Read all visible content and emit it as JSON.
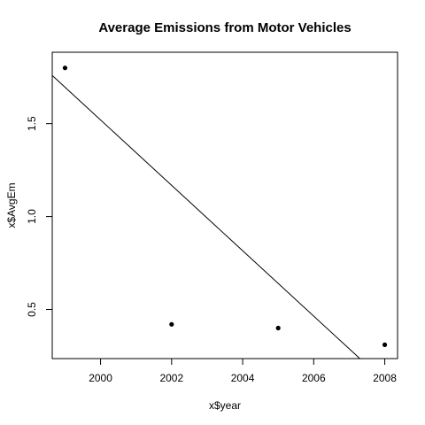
{
  "chart_data": {
    "type": "scatter",
    "title": "Average Emissions from Motor Vehicles",
    "xlabel": "x$year",
    "ylabel": "x$AvgEm",
    "xlim": [
      1998.64,
      2008.36
    ],
    "ylim": [
      0.2356,
      1.8844
    ],
    "xticks": [
      2000,
      2002,
      2004,
      2006,
      2008
    ],
    "yticks": [
      0.5,
      1.0,
      1.5
    ],
    "xtick_labels": [
      "2000",
      "2002",
      "2004",
      "2006",
      "2008"
    ],
    "ytick_labels": [
      "0.5",
      "1.0",
      "1.5"
    ],
    "points": [
      {
        "x": 1999,
        "y": 1.8
      },
      {
        "x": 2002,
        "y": 0.42
      },
      {
        "x": 2005,
        "y": 0.4
      },
      {
        "x": 2008,
        "y": 0.31
      }
    ],
    "regression_line": {
      "intercept": 353.44,
      "slope": -0.17596
    },
    "grid": false,
    "colors": {
      "points": "#000000",
      "line": "#000000",
      "background": "#ffffff"
    }
  }
}
